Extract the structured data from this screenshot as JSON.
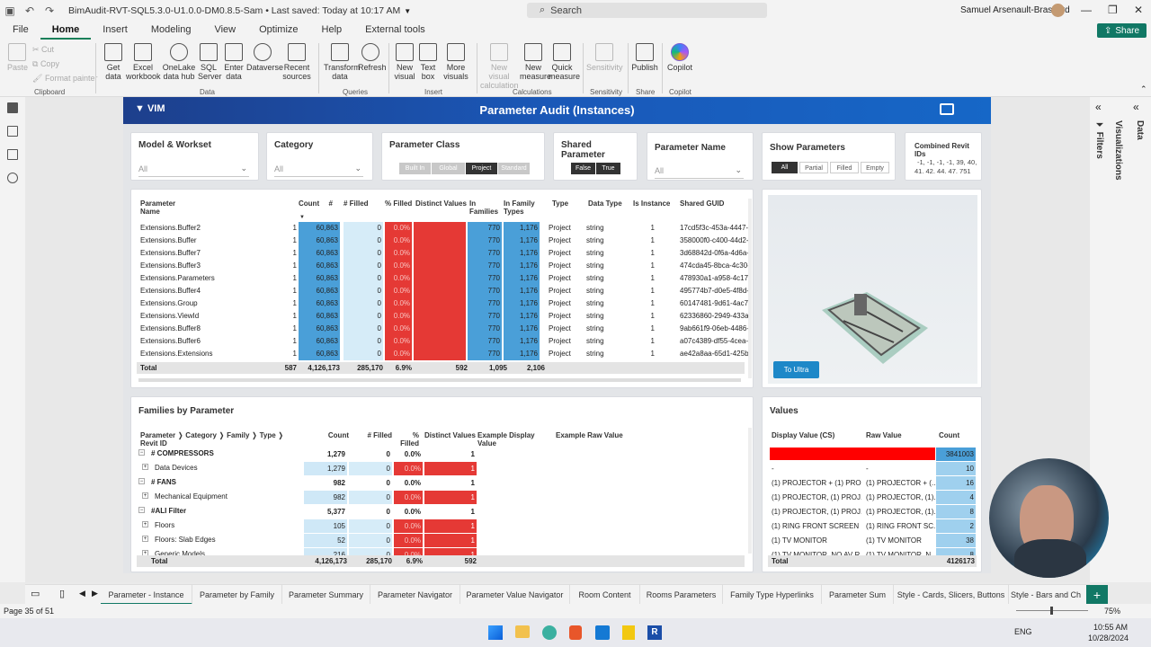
{
  "window": {
    "title": "BimAudit-RVT-SQL5.3.0-U1.0.0-DM0.8.5-Sam • Last saved: Today at 10:17 AM",
    "search_placeholder": "Search",
    "user": "Samuel Arsenault-Brassard"
  },
  "menu": {
    "items": [
      "File",
      "Home",
      "Insert",
      "Modeling",
      "View",
      "Optimize",
      "Help",
      "External tools"
    ],
    "active": "Home",
    "share": "Share"
  },
  "ribbon": {
    "clipboard": {
      "paste": "Paste",
      "cut": "Cut",
      "copy": "Copy",
      "format_painter": "Format painter",
      "group": "Clipboard"
    },
    "data": {
      "get_data": "Get data",
      "excel": "Excel workbook",
      "onelake": "OneLake data hub",
      "sql": "SQL Server",
      "enter": "Enter data",
      "dataverse": "Dataverse",
      "recent": "Recent sources",
      "group": "Data"
    },
    "queries": {
      "transform": "Transform data",
      "refresh": "Refresh",
      "group": "Queries"
    },
    "insert": {
      "new_visual": "New visual",
      "text_box": "Text box",
      "more_visuals": "More visuals",
      "group": "Insert"
    },
    "calculations": {
      "new_visual_calc": "New visual calculation",
      "new_measure": "New measure",
      "quick_measure": "Quick measure",
      "group": "Calculations"
    },
    "sensitivity": {
      "label": "Sensitivity",
      "group": "Sensitivity"
    },
    "share": {
      "publish": "Publish",
      "group": "Share"
    },
    "copilot": {
      "label": "Copilot",
      "group": "Copilot"
    }
  },
  "report": {
    "logo": "VIM",
    "title": "Parameter Audit (Instances)",
    "slicers": {
      "model_workset": {
        "title": "Model & Workset",
        "value": "All"
      },
      "category": {
        "title": "Category",
        "value": "All"
      },
      "parameter_class": {
        "title": "Parameter Class",
        "options": [
          "Built In",
          "Global",
          "Project",
          "Standard"
        ],
        "selected": "Project"
      },
      "shared_parameter": {
        "title": "Shared Parameter",
        "options": [
          "False",
          "True"
        ]
      },
      "parameter_name": {
        "title": "Parameter Name",
        "value": "All"
      },
      "show_parameters": {
        "title": "Show Parameters",
        "options": [
          "All",
          "Partial",
          "Filled",
          "Empty"
        ],
        "selected": "All"
      },
      "combined_revit_ids": {
        "title": "Combined Revit IDs",
        "line1": "-1, -1, -1, -1, 39, 40,",
        "line2": "41, 42, 44, 47, 751"
      }
    },
    "param_table": {
      "headers": [
        "Parameter Name",
        "#",
        "Count",
        "# Filled",
        "% Filled",
        "Distinct Values",
        "In Families",
        "In Family Types",
        "Type",
        "Data Type",
        "Is Instance",
        "Shared GUID"
      ],
      "rows": [
        [
          "Extensions.Buffer2",
          "1",
          "60,863",
          "0",
          "0.0%",
          "",
          "770",
          "1,176",
          "Project",
          "string",
          "1",
          "17cd5f3c-453a-4447-"
        ],
        [
          "Extensions.Buffer",
          "1",
          "60,863",
          "0",
          "0.0%",
          "",
          "770",
          "1,176",
          "Project",
          "string",
          "1",
          "358000f0-c400-44d2-"
        ],
        [
          "Extensions.Buffer7",
          "1",
          "60,863",
          "0",
          "0.0%",
          "",
          "770",
          "1,176",
          "Project",
          "string",
          "1",
          "3d68842d-0f6a-4d6a-"
        ],
        [
          "Extensions.Buffer3",
          "1",
          "60,863",
          "0",
          "0.0%",
          "",
          "770",
          "1,176",
          "Project",
          "string",
          "1",
          "474cda45-8bca-4c30-"
        ],
        [
          "Extensions.Parameters",
          "1",
          "60,863",
          "0",
          "0.0%",
          "",
          "770",
          "1,176",
          "Project",
          "string",
          "1",
          "478930a1-a958-4c17"
        ],
        [
          "Extensions.Buffer4",
          "1",
          "60,863",
          "0",
          "0.0%",
          "",
          "770",
          "1,176",
          "Project",
          "string",
          "1",
          "495774b7-d0e5-4f8d-"
        ],
        [
          "Extensions.Group",
          "1",
          "60,863",
          "0",
          "0.0%",
          "",
          "770",
          "1,176",
          "Project",
          "string",
          "1",
          "60147481-9d61-4ac7"
        ],
        [
          "Extensions.ViewId",
          "1",
          "60,863",
          "0",
          "0.0%",
          "",
          "770",
          "1,176",
          "Project",
          "string",
          "1",
          "62336860-2949-433a"
        ],
        [
          "Extensions.Buffer8",
          "1",
          "60,863",
          "0",
          "0.0%",
          "",
          "770",
          "1,176",
          "Project",
          "string",
          "1",
          "9ab661f9-06eb-4486-"
        ],
        [
          "Extensions.Buffer6",
          "1",
          "60,863",
          "0",
          "0.0%",
          "",
          "770",
          "1,176",
          "Project",
          "string",
          "1",
          "a07c4389-df55-4cea-"
        ],
        [
          "Extensions.Extensions",
          "1",
          "60,863",
          "0",
          "0.0%",
          "",
          "770",
          "1,176",
          "Project",
          "string",
          "1",
          "ae42a8aa-65d1-425b-"
        ]
      ],
      "total": [
        "Total",
        "587",
        "4,126,173",
        "285,170",
        "6.9%",
        "592",
        "1,095",
        "2,106"
      ]
    },
    "viewer": {
      "button": "To Ultra"
    },
    "families": {
      "title": "Families by Parameter",
      "headers": [
        "Parameter ❭ Category ❭ Family ❭ Type ❭ Revit ID",
        "Count",
        "# Filled",
        "% Filled",
        "Distinct Values",
        "Example Display Value",
        "Example Raw Value"
      ],
      "rows": [
        {
          "label": "# COMPRESSORS",
          "level": 0,
          "count": "1,279",
          "filled": "0",
          "pct": "0.0%",
          "distinct": "1"
        },
        {
          "label": "Data Devices",
          "level": 1,
          "count": "1,279",
          "filled": "0",
          "pct": "0.0%",
          "distinct": "1"
        },
        {
          "label": "# FANS",
          "level": 0,
          "count": "982",
          "filled": "0",
          "pct": "0.0%",
          "distinct": "1"
        },
        {
          "label": "Mechanical Equipment",
          "level": 1,
          "count": "982",
          "filled": "0",
          "pct": "0.0%",
          "distinct": "1"
        },
        {
          "label": "#ALI Filter",
          "level": 0,
          "count": "5,377",
          "filled": "0",
          "pct": "0.0%",
          "distinct": "1"
        },
        {
          "label": "Floors",
          "level": 1,
          "count": "105",
          "filled": "0",
          "pct": "0.0%",
          "distinct": "1"
        },
        {
          "label": "Floors: Slab Edges",
          "level": 1,
          "count": "52",
          "filled": "0",
          "pct": "0.0%",
          "distinct": "1"
        },
        {
          "label": "Generic Models",
          "level": 1,
          "count": "216",
          "filled": "0",
          "pct": "0.0%",
          "distinct": "1"
        }
      ],
      "total": [
        "Total",
        "4,126,173",
        "285,170",
        "6.9%",
        "592"
      ]
    },
    "values": {
      "title": "Values",
      "headers": [
        "Display Value (CS)",
        "Raw Value",
        "Count"
      ],
      "rows": [
        [
          "",
          "",
          "3841003"
        ],
        [
          "-",
          "-",
          "10"
        ],
        [
          "(1) PROJECTOR + (1) PRO...",
          "(1) PROJECTOR + (...",
          "16"
        ],
        [
          "(1) PROJECTOR, (1) PROJ...",
          "(1) PROJECTOR, (1)...",
          "4"
        ],
        [
          "(1) PROJECTOR, (1) PROJ...",
          "(1) PROJECTOR, (1)...",
          "8"
        ],
        [
          "(1) RING FRONT SCREEN ...",
          "(1) RING FRONT SC...",
          "2"
        ],
        [
          "(1) TV MONITOR",
          "(1) TV MONITOR",
          "38"
        ],
        [
          "(1) TV MONITOR, NO AV R...",
          "(1) TV MONITOR, N...",
          "8"
        ]
      ],
      "total": [
        "Total",
        "4126173"
      ]
    }
  },
  "tabs": [
    "Parameter - Instance",
    "Parameter by Family",
    "Parameter Summary",
    "Parameter Navigator",
    "Parameter Value Navigator",
    "Room Content",
    "Rooms Parameters",
    "Family Type Hyperlinks",
    "Parameter Sum",
    "Style - Cards, Slicers, Buttons",
    "Style - Bars and Ch"
  ],
  "active_tab": "Parameter - Instance",
  "status": {
    "page": "Page 35 of 51",
    "zoom": "75%"
  },
  "panes": {
    "filters": "Filters",
    "visualizations": "Visualizations",
    "data": "Data"
  },
  "taskbar": {
    "lang": "ENG",
    "time": "10:55 AM",
    "date": "10/28/2024"
  },
  "colors": {
    "accent": "#117865",
    "banner": "#1a58b8",
    "red": "#e53935",
    "blue": "#4a9fd8",
    "light_blue": "#cfe8f7"
  }
}
